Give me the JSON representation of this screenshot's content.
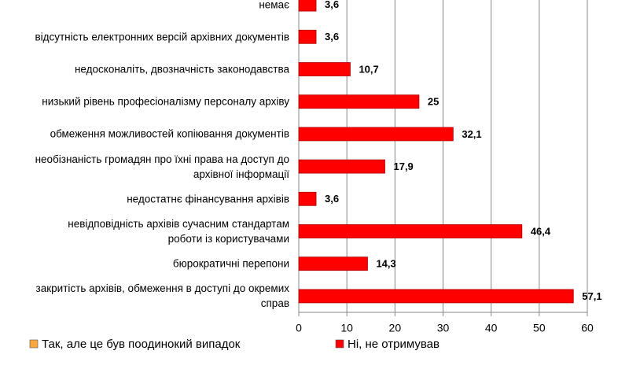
{
  "chart_data": {
    "type": "hbar",
    "categories": [
      "немає",
      "відсутність електронних версій архівних документів",
      "недосконаліть, двозначність законодавства",
      "низький рівень професіоналізму персоналу архіву",
      "обмеження можливостей копіювання документів",
      "необізнаність громадян про їхні права на доступ до\nархівної інформації",
      "недостатнє фінансування архівів",
      "невідповідність архівів сучасним стандартам\nроботи із користувачами",
      "бюрократичні перепони",
      "закритість архівів, обмеження в доступі до окремих\nсправ"
    ],
    "series": [
      {
        "name": "Так, але це був поодинокий випадок",
        "color": "#f9a73e",
        "values": [
          null,
          null,
          null,
          null,
          null,
          null,
          null,
          null,
          null,
          null
        ]
      },
      {
        "name": "Ні, не отримував",
        "color": "#ff0000",
        "values": [
          3.6,
          3.6,
          10.7,
          25,
          32.1,
          17.9,
          3.6,
          46.4,
          14.3,
          57.1
        ],
        "value_labels": [
          "3,6",
          "3,6",
          "10,7",
          "25",
          "32,1",
          "17,9",
          "3,6",
          "46,4",
          "14,3",
          "57,1"
        ]
      }
    ],
    "xlim": [
      0,
      60
    ],
    "xticks": [
      0,
      10,
      20,
      30,
      40,
      50,
      60
    ],
    "grid": true
  }
}
